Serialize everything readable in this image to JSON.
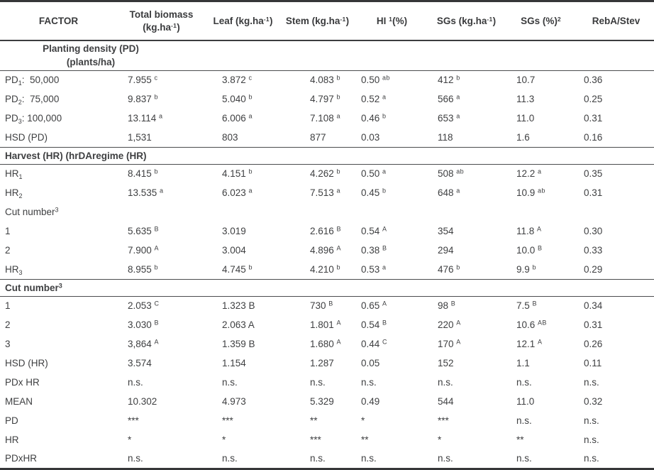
{
  "page": {
    "background": "#ffffff",
    "text_color": "#3f4042",
    "thin_rule_color": "#4b4c4e",
    "heavy_rule_color": "#353638"
  },
  "table": {
    "columns": [
      {
        "label": "FACTOR"
      },
      {
        "label": "Total biomass\n(kg.ha^{-1})"
      },
      {
        "label": "Leaf (kg.ha^{-1})"
      },
      {
        "label": "Stem (kg.ha^{-1})"
      },
      {
        "label": "HI ^{1}(%)"
      },
      {
        "label": "SGs (kg.ha^{-1})"
      },
      {
        "label": "SGs (%)^{2}"
      },
      {
        "label": "RebA/Stev"
      }
    ],
    "rows": [
      {
        "type": "group-center",
        "label": "Planting density (PD)\n(plants/ha)",
        "rule_after": true
      },
      {
        "type": "data",
        "cells": [
          "PD_{1}:  50,000",
          "7.955 ^{c}",
          "3.872 ^{c}",
          "4.083 ^{b}",
          "0.50 ^{ab}",
          "412 ^{b}",
          "10.7",
          "0.36"
        ]
      },
      {
        "type": "data",
        "cells": [
          "PD_{2}:  75,000",
          "9.837 ^{b}",
          "5.040 ^{b}",
          "4.797 ^{b}",
          "0.52 ^{a}",
          "566 ^{a}",
          "11.3",
          "0.25"
        ]
      },
      {
        "type": "data",
        "cells": [
          "PD_{3}: 100,000",
          "13.114 ^{a}",
          "6.006 ^{a}",
          "7.108 ^{a}",
          "0.46 ^{b}",
          "653 ^{a}",
          "11.0",
          "0.31"
        ]
      },
      {
        "type": "data",
        "cells": [
          "HSD (PD)",
          "1,531",
          "803",
          "877",
          "0.03",
          "118",
          "1.6",
          "0.16"
        ],
        "rule_after": true
      },
      {
        "type": "group-bold",
        "label": "Harvest (HR) (hrDAregime (HR)",
        "rule_after": true
      },
      {
        "type": "data",
        "cells": [
          "HR_{1}",
          "8.415 ^{b}",
          "4.151 ^{b}",
          "4.262 ^{b}",
          "0.50 ^{a}",
          "508 ^{ab}",
          "12.2 ^{a}",
          "0.35"
        ]
      },
      {
        "type": "data",
        "cells": [
          "HR_{2}",
          "13.535 ^{a}",
          "6.023 ^{a}",
          "7.513 ^{a}",
          "0.45 ^{b}",
          "648 ^{a}",
          "10.9 ^{ab}",
          "0.31"
        ]
      },
      {
        "type": "group-plain",
        "label": "Cut number^{3}"
      },
      {
        "type": "data",
        "cells": [
          "1",
          "5.635 ^{B}",
          "3.019",
          "2.616 ^{B}",
          "0.54 ^{A}",
          "354",
          "11.8 ^{A}",
          "0.30"
        ]
      },
      {
        "type": "data",
        "cells": [
          "2",
          "7.900 ^{A}",
          "3.004",
          "4.896 ^{A}",
          "0.38 ^{B}",
          "294",
          "10.0 ^{B}",
          "0.33"
        ]
      },
      {
        "type": "data",
        "cells": [
          "HR_{3}",
          "8.955 ^{b}",
          "4.745 ^{b}",
          "4.210 ^{b}",
          "0.53 ^{a}",
          "476 ^{b}",
          "9.9 ^{b}",
          "0.29"
        ],
        "rule_after": true
      },
      {
        "type": "group-bold",
        "label": "Cut number^{3}",
        "rule_after": true
      },
      {
        "type": "data",
        "cells": [
          "1",
          "2.053 ^{C}",
          "1.323 B",
          "730 ^{B}",
          "0.65 ^{A}",
          "98 ^{B}",
          "7.5 ^{B}",
          "0.34"
        ]
      },
      {
        "type": "data",
        "cells": [
          "2",
          "3.030 ^{B}",
          "2.063 A",
          "1.801 ^{A}",
          "0.54 ^{B}",
          "220 ^{A}",
          "10.6 ^{AB}",
          "0.31"
        ]
      },
      {
        "type": "data",
        "cells": [
          "3",
          "3,864 ^{A}",
          "1.359 B",
          "1.680 ^{A}",
          "0.44 ^{C}",
          "170 ^{A}",
          "12.1 ^{A}",
          "0.26"
        ]
      },
      {
        "type": "data",
        "cells": [
          "HSD (HR)",
          "3.574",
          "1.154",
          "1.287",
          "0.05",
          "152",
          "1.1",
          "0.11"
        ]
      },
      {
        "type": "data",
        "cells": [
          "PDx HR",
          "n.s.",
          "n.s.",
          "n.s.",
          "n.s.",
          "n.s.",
          "n.s.",
          "n.s."
        ]
      },
      {
        "type": "data",
        "cells": [
          "MEAN",
          "10.302",
          "4.973",
          "5.329",
          "0.49",
          "544",
          "11.0",
          "0.32"
        ]
      },
      {
        "type": "data",
        "cells": [
          "PD",
          "***",
          "***",
          "**",
          "*",
          "***",
          "n.s.",
          "n.s."
        ]
      },
      {
        "type": "data",
        "cells": [
          "HR",
          "*",
          "*",
          "***",
          "**",
          "*",
          "**",
          "n.s."
        ]
      },
      {
        "type": "data",
        "cells": [
          "PDxHR",
          "n.s.",
          "n.s.",
          "n.s.",
          "n.s.",
          "n.s.",
          "n.s.",
          "n.s."
        ]
      }
    ]
  }
}
